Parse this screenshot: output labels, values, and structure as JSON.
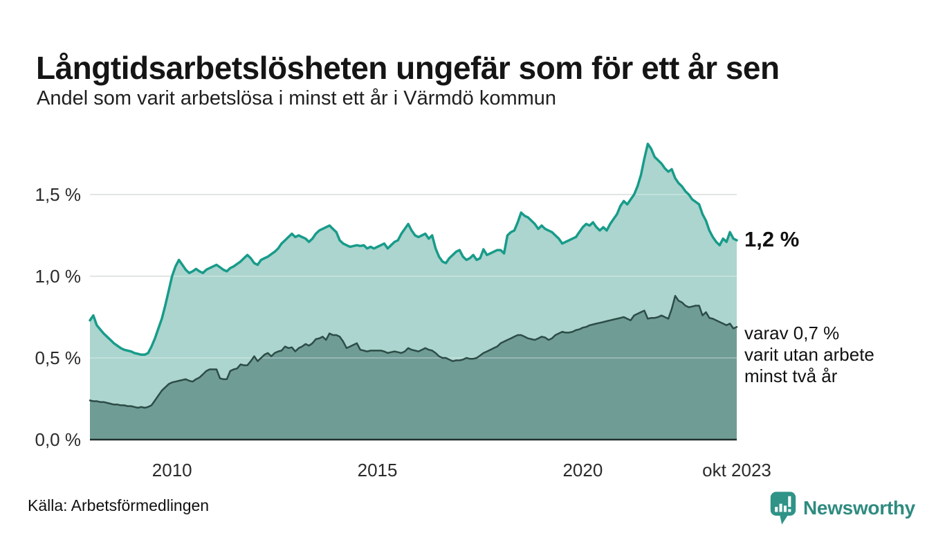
{
  "header": {
    "title": "Långtidsarbetslösheten ungefär som för ett år sen",
    "subtitle": "Andel som varit arbetslösa i minst ett år i Värmdö kommun"
  },
  "chart_data": {
    "type": "area",
    "title": "Långtidsarbetslösheten ungefär som för ett år sen",
    "subtitle": "Andel som varit arbetslösa i minst ett år i Värmdö kommun",
    "unit": "%",
    "x_start": "2008-01",
    "x_end": "2023-10",
    "x_frequency": "monthly",
    "ylim": [
      0,
      1.9
    ],
    "grid": "horizontal",
    "legend": "none",
    "yticks": [
      {
        "label": "1,5 %",
        "value": 1.5
      },
      {
        "label": "1,0 %",
        "value": 1.0
      },
      {
        "label": "0,5 %",
        "value": 0.5
      },
      {
        "label": "0,0 %",
        "value": 0.0
      }
    ],
    "xticks": [
      {
        "label": "2010",
        "month_index": 24
      },
      {
        "label": "2015",
        "month_index": 84
      },
      {
        "label": "2020",
        "month_index": 144
      },
      {
        "label": "okt 2023",
        "month_index": 189
      }
    ],
    "series": [
      {
        "name": "Arbetslösa minst ett år",
        "latest_value": "1,2 %",
        "color": "#189b8a",
        "fill": "#abd5ce",
        "values": [
          0.73,
          0.76,
          0.7,
          0.675,
          0.65,
          0.63,
          0.61,
          0.59,
          0.575,
          0.56,
          0.55,
          0.545,
          0.54,
          0.53,
          0.525,
          0.52,
          0.52,
          0.53,
          0.57,
          0.62,
          0.68,
          0.74,
          0.82,
          0.91,
          1.0,
          1.06,
          1.1,
          1.07,
          1.04,
          1.02,
          1.03,
          1.045,
          1.03,
          1.02,
          1.04,
          1.05,
          1.06,
          1.07,
          1.055,
          1.04,
          1.03,
          1.05,
          1.06,
          1.075,
          1.09,
          1.11,
          1.13,
          1.11,
          1.08,
          1.07,
          1.1,
          1.11,
          1.12,
          1.135,
          1.15,
          1.17,
          1.2,
          1.22,
          1.24,
          1.26,
          1.24,
          1.25,
          1.24,
          1.23,
          1.21,
          1.23,
          1.26,
          1.28,
          1.29,
          1.3,
          1.31,
          1.29,
          1.27,
          1.22,
          1.2,
          1.19,
          1.18,
          1.185,
          1.19,
          1.185,
          1.19,
          1.17,
          1.18,
          1.17,
          1.18,
          1.19,
          1.2,
          1.17,
          1.19,
          1.21,
          1.22,
          1.26,
          1.29,
          1.32,
          1.28,
          1.25,
          1.24,
          1.25,
          1.26,
          1.23,
          1.25,
          1.17,
          1.12,
          1.09,
          1.08,
          1.11,
          1.13,
          1.15,
          1.16,
          1.12,
          1.1,
          1.11,
          1.13,
          1.1,
          1.11,
          1.165,
          1.13,
          1.14,
          1.15,
          1.16,
          1.16,
          1.14,
          1.25,
          1.27,
          1.28,
          1.33,
          1.39,
          1.37,
          1.36,
          1.34,
          1.32,
          1.29,
          1.31,
          1.29,
          1.28,
          1.27,
          1.25,
          1.23,
          1.2,
          1.21,
          1.22,
          1.23,
          1.24,
          1.27,
          1.3,
          1.32,
          1.31,
          1.33,
          1.3,
          1.28,
          1.3,
          1.28,
          1.32,
          1.35,
          1.38,
          1.43,
          1.46,
          1.44,
          1.47,
          1.5,
          1.55,
          1.62,
          1.72,
          1.81,
          1.78,
          1.73,
          1.71,
          1.69,
          1.66,
          1.64,
          1.655,
          1.6,
          1.57,
          1.55,
          1.52,
          1.5,
          1.47,
          1.455,
          1.44,
          1.38,
          1.34,
          1.28,
          1.24,
          1.21,
          1.19,
          1.23,
          1.21,
          1.27,
          1.23,
          1.22
        ]
      },
      {
        "name": "Arbetslösa minst två år",
        "latest_value": "0,7 %",
        "color": "#2d4c47",
        "fill": "#709c96",
        "values": [
          0.24,
          0.235,
          0.235,
          0.23,
          0.23,
          0.225,
          0.22,
          0.215,
          0.215,
          0.21,
          0.21,
          0.205,
          0.205,
          0.2,
          0.195,
          0.2,
          0.195,
          0.2,
          0.21,
          0.24,
          0.27,
          0.3,
          0.32,
          0.34,
          0.35,
          0.355,
          0.36,
          0.365,
          0.37,
          0.36,
          0.355,
          0.37,
          0.38,
          0.4,
          0.42,
          0.43,
          0.43,
          0.43,
          0.375,
          0.37,
          0.37,
          0.42,
          0.43,
          0.435,
          0.46,
          0.455,
          0.455,
          0.48,
          0.51,
          0.48,
          0.5,
          0.52,
          0.53,
          0.51,
          0.53,
          0.54,
          0.545,
          0.57,
          0.56,
          0.565,
          0.54,
          0.56,
          0.57,
          0.585,
          0.575,
          0.59,
          0.615,
          0.62,
          0.63,
          0.61,
          0.65,
          0.64,
          0.64,
          0.63,
          0.6,
          0.56,
          0.57,
          0.58,
          0.59,
          0.55,
          0.545,
          0.54,
          0.545,
          0.545,
          0.545,
          0.545,
          0.54,
          0.53,
          0.535,
          0.54,
          0.535,
          0.53,
          0.54,
          0.56,
          0.55,
          0.545,
          0.54,
          0.55,
          0.56,
          0.55,
          0.545,
          0.53,
          0.51,
          0.5,
          0.5,
          0.49,
          0.48,
          0.485,
          0.485,
          0.49,
          0.5,
          0.495,
          0.495,
          0.5,
          0.515,
          0.53,
          0.54,
          0.55,
          0.56,
          0.57,
          0.59,
          0.6,
          0.61,
          0.62,
          0.63,
          0.64,
          0.64,
          0.63,
          0.62,
          0.615,
          0.61,
          0.62,
          0.63,
          0.625,
          0.61,
          0.62,
          0.64,
          0.65,
          0.66,
          0.655,
          0.655,
          0.66,
          0.67,
          0.675,
          0.685,
          0.69,
          0.7,
          0.705,
          0.71,
          0.715,
          0.72,
          0.725,
          0.73,
          0.735,
          0.74,
          0.745,
          0.75,
          0.74,
          0.73,
          0.76,
          0.77,
          0.78,
          0.79,
          0.74,
          0.745,
          0.745,
          0.75,
          0.76,
          0.75,
          0.74,
          0.8,
          0.88,
          0.85,
          0.84,
          0.82,
          0.81,
          0.815,
          0.82,
          0.82,
          0.76,
          0.78,
          0.745,
          0.74,
          0.73,
          0.72,
          0.71,
          0.7,
          0.71,
          0.68,
          0.69
        ]
      }
    ],
    "annotations": [
      {
        "text": "1,2 %",
        "bold": true
      },
      {
        "text": "varav 0,7 %\nvarit utan arbete\nminst två år",
        "bold": false
      }
    ]
  },
  "footer": {
    "source": "Källa: Arbetsförmedlingen",
    "brand": "Newsworthy",
    "brand_color": "#2f8b80",
    "logo_icon": "speech-bubble-bar-chart-icon"
  }
}
